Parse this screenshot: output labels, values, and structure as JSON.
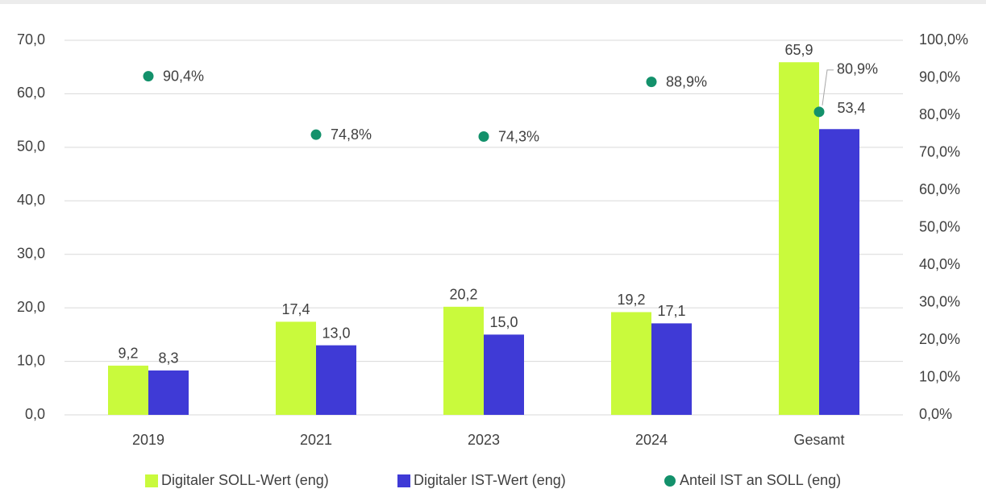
{
  "chart_data": {
    "type": "bar",
    "categories": [
      "2019",
      "2021",
      "2023",
      "2024",
      "Gesamt"
    ],
    "series": [
      {
        "name": "Digitaler SOLL-Wert (eng)",
        "color": "#c9fa3c",
        "values": [
          9.2,
          17.4,
          20.2,
          19.2,
          65.9
        ],
        "value_labels": [
          "9,2",
          "17,4",
          "20,2",
          "19,2",
          "65,9"
        ]
      },
      {
        "name": "Digitaler IST-Wert (eng)",
        "color": "#3f3ad6",
        "values": [
          8.3,
          13.0,
          15.0,
          17.1,
          53.4
        ],
        "value_labels": [
          "8,3",
          "13,0",
          "15,0",
          "17,1",
          "53,4"
        ]
      },
      {
        "name": "Anteil IST an SOLL (eng)",
        "color": "#13916b",
        "type": "scatter",
        "axis": "y2",
        "values": [
          90.4,
          74.8,
          74.3,
          88.9,
          80.9
        ],
        "value_labels": [
          "90,4%",
          "74,8%",
          "74,3%",
          "88,9%",
          "80,9%"
        ]
      }
    ],
    "ylim": [
      0,
      70
    ],
    "yticks": [
      {
        "value": 0,
        "label": "0,0"
      },
      {
        "value": 10,
        "label": "10,0"
      },
      {
        "value": 20,
        "label": "20,0"
      },
      {
        "value": 30,
        "label": "30,0"
      },
      {
        "value": 40,
        "label": "40,0"
      },
      {
        "value": 50,
        "label": "50,0"
      },
      {
        "value": 60,
        "label": "60,0"
      },
      {
        "value": 70,
        "label": "70,0"
      }
    ],
    "y2lim": [
      0,
      100
    ],
    "y2ticks": [
      {
        "value": 0,
        "label": "0,0%"
      },
      {
        "value": 10,
        "label": "10,0%"
      },
      {
        "value": 20,
        "label": "20,0%"
      },
      {
        "value": 30,
        "label": "30,0%"
      },
      {
        "value": 40,
        "label": "40,0%"
      },
      {
        "value": 50,
        "label": "50,0%"
      },
      {
        "value": 60,
        "label": "60,0%"
      },
      {
        "value": 70,
        "label": "70,0%"
      },
      {
        "value": 80,
        "label": "80,0%"
      },
      {
        "value": 90,
        "label": "90,0%"
      },
      {
        "value": 100,
        "label": "100,0%"
      }
    ],
    "grid": true,
    "legend": "bottom"
  }
}
